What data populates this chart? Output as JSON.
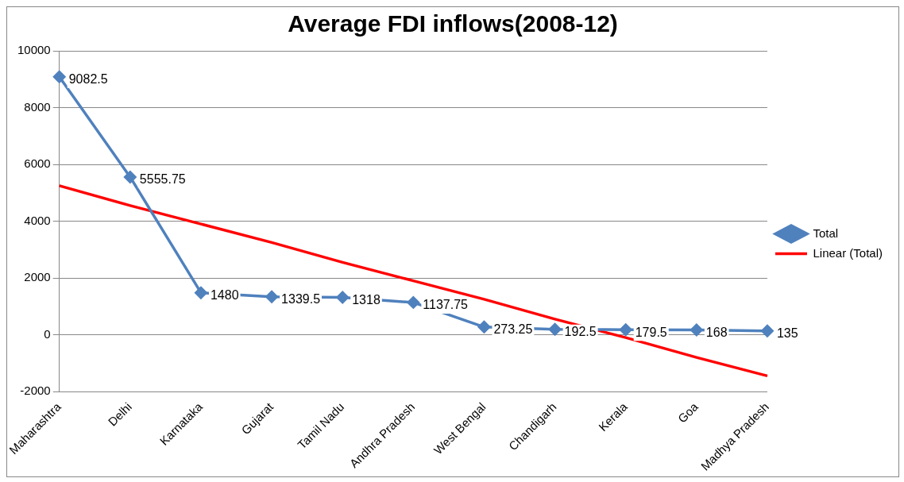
{
  "chart_data": {
    "type": "line",
    "title": "Average FDI inflows(2008-12)",
    "categories": [
      "Maharashtra",
      "Delhi",
      "Karnataka",
      "Gujarat",
      "Tamil Nadu",
      "Andhra Pradesh",
      "West Bengal",
      "Chandigarh",
      "Kerala",
      "Goa",
      "Madhya Pradesh"
    ],
    "series": [
      {
        "name": "Total",
        "color": "#4f81bd",
        "marker": "diamond",
        "values": [
          9082.5,
          5555.75,
          1480,
          1339.5,
          1318,
          1137.75,
          273.25,
          192.5,
          179.5,
          168,
          135
        ],
        "value_labels": [
          "9082.5",
          "5555.75",
          "1480",
          "1339.5",
          "1318",
          "1137.75",
          "273.25",
          "192.5",
          "179.5",
          "168",
          "135"
        ]
      },
      {
        "name": "Linear (Total)",
        "color": "#ff0000",
        "marker": "none",
        "values": [
          5250,
          4550,
          3900,
          3250,
          2550,
          1900,
          1250,
          550,
          -100,
          -800,
          -1450
        ]
      }
    ],
    "ylim": [
      -2000,
      10000
    ],
    "yticks": [
      -2000,
      0,
      2000,
      4000,
      6000,
      8000,
      10000
    ],
    "grid": "y",
    "legend": "right",
    "line_style": "solid"
  }
}
